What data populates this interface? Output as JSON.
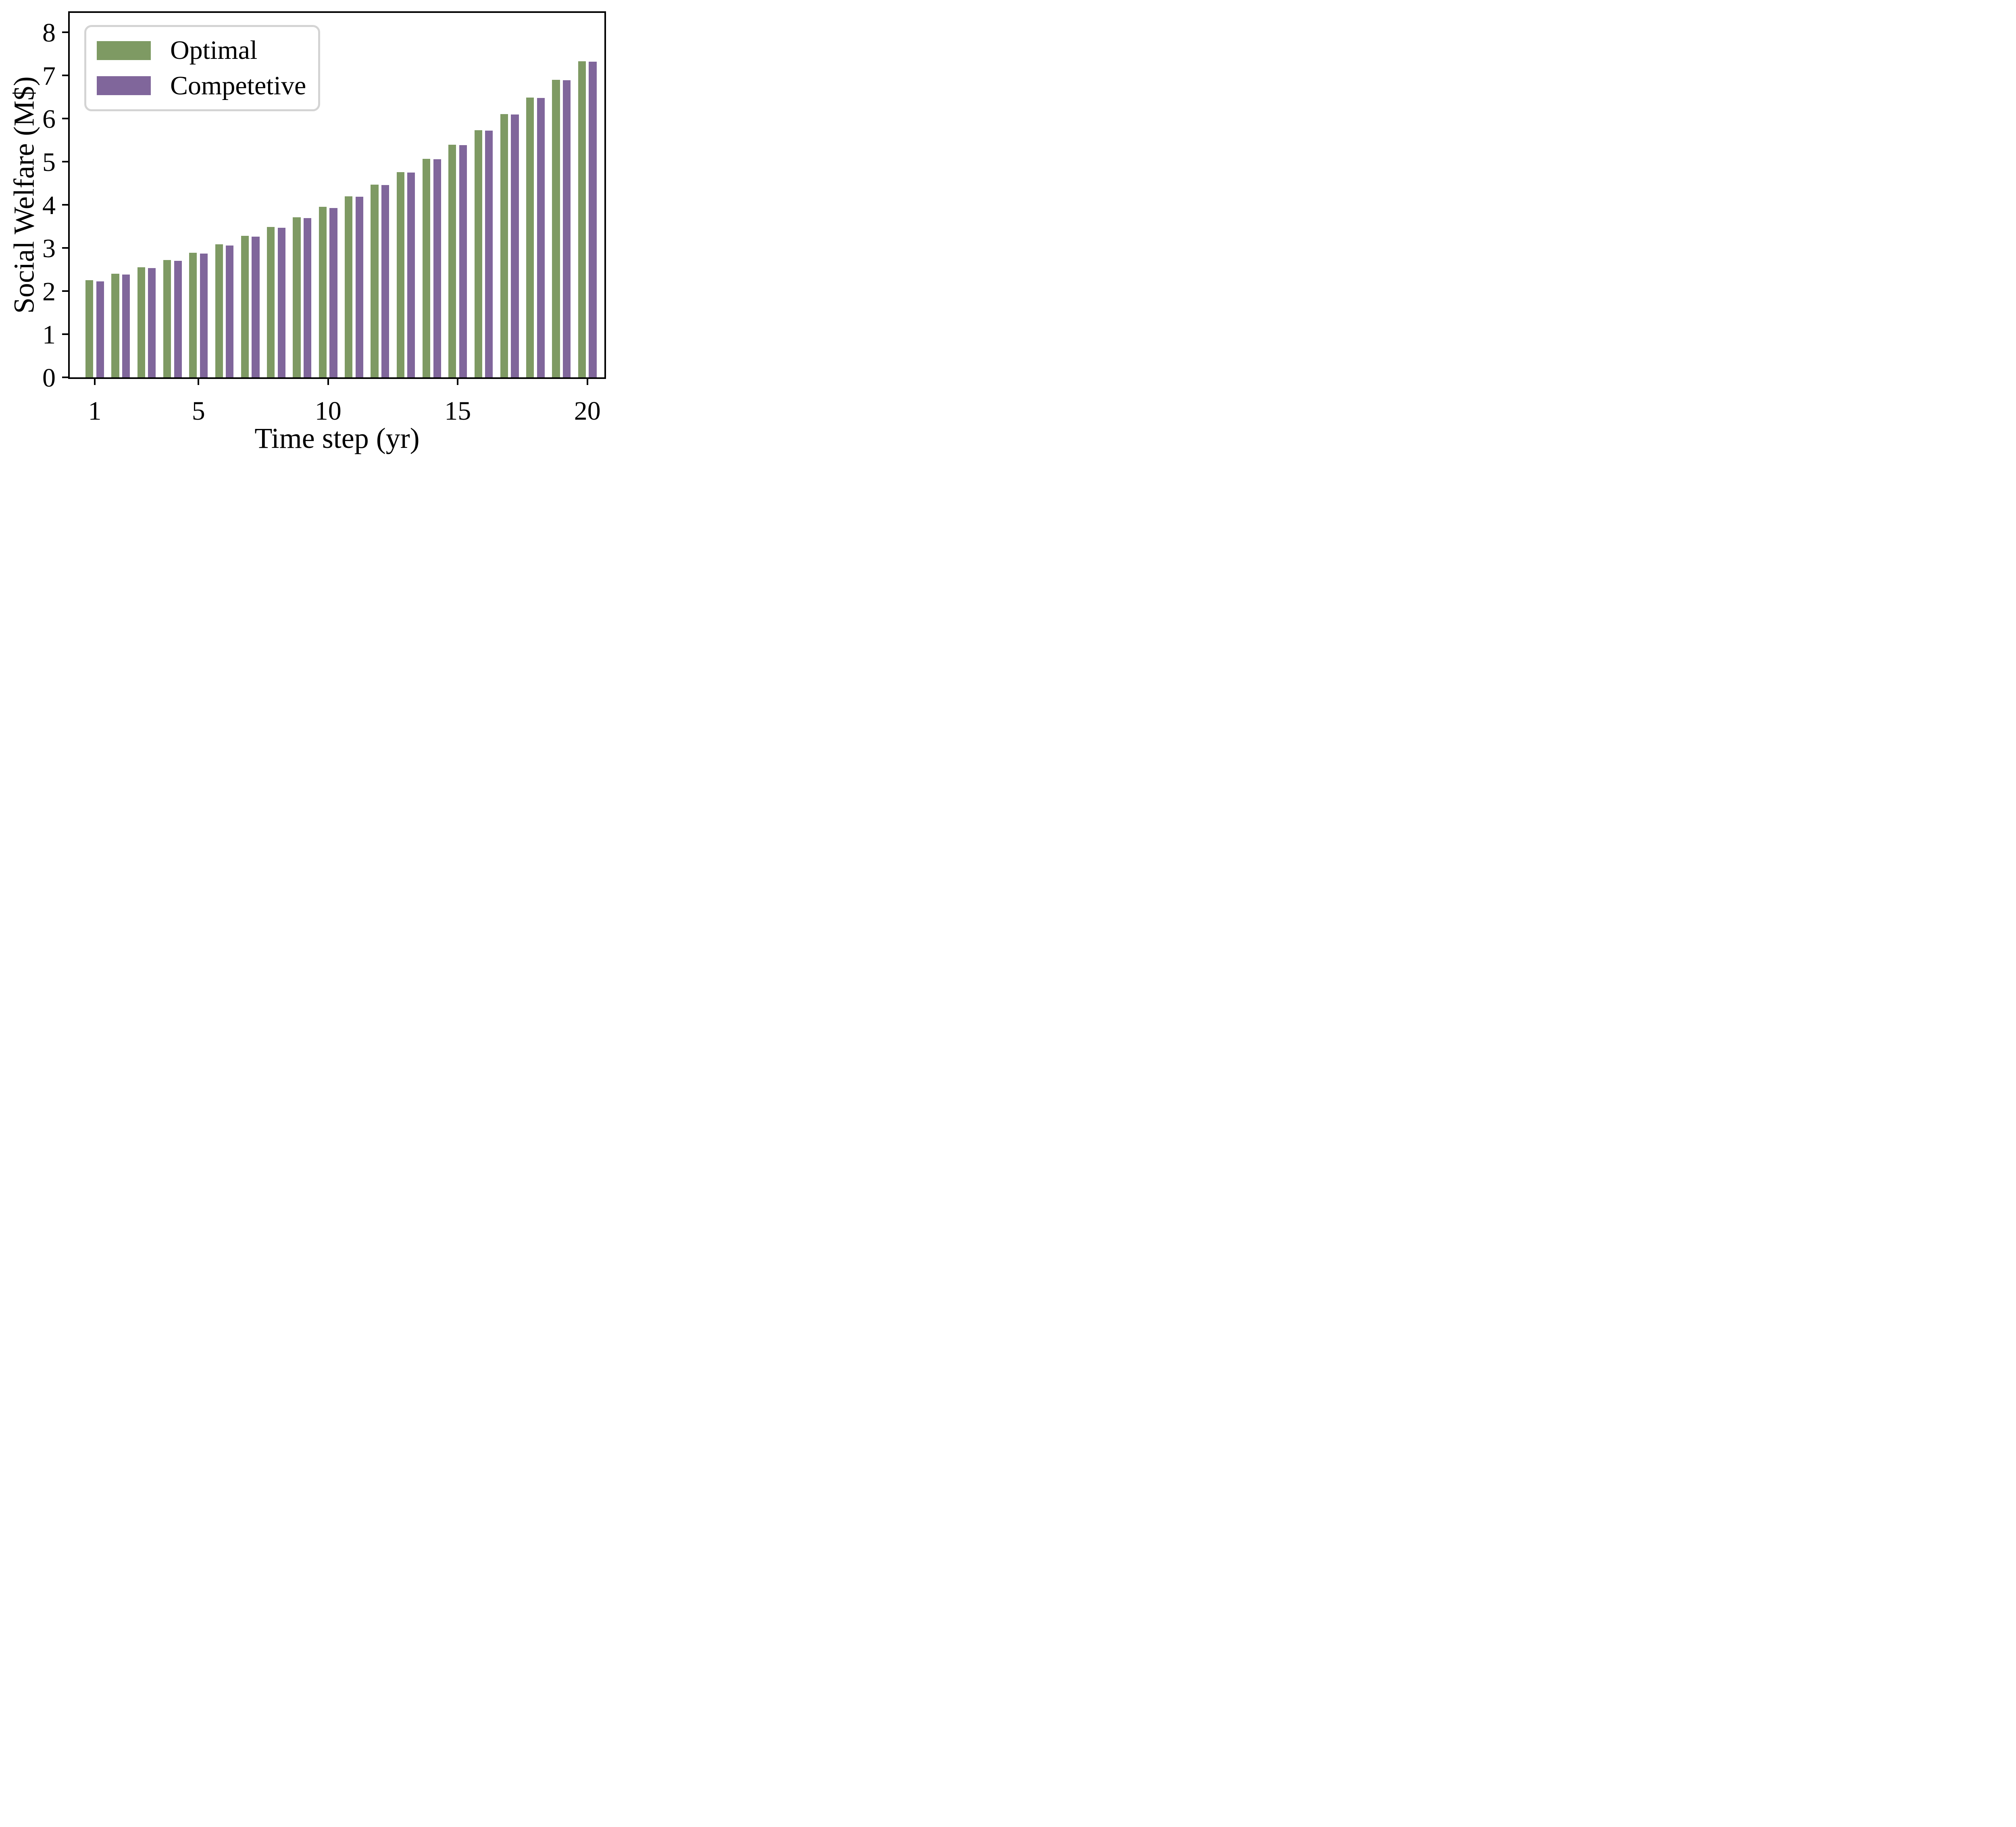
{
  "chart_data": {
    "type": "bar",
    "title": "",
    "xlabel": "Time step (yr)",
    "ylabel": "Social Welfare (M$)",
    "categories": [
      1,
      2,
      3,
      4,
      5,
      6,
      7,
      8,
      9,
      10,
      11,
      12,
      13,
      14,
      15,
      16,
      17,
      18,
      19,
      20
    ],
    "series": [
      {
        "name": "Optimal",
        "color": "#7e9a63",
        "values": [
          2.25,
          2.4,
          2.55,
          2.72,
          2.89,
          3.08,
          3.28,
          3.49,
          3.71,
          3.95,
          4.2,
          4.47,
          4.76,
          5.07,
          5.39,
          5.73,
          6.1,
          6.49,
          6.9,
          7.33
        ]
      },
      {
        "name": "Competetive",
        "color": "#80669b",
        "values": [
          2.22,
          2.38,
          2.53,
          2.7,
          2.87,
          3.06,
          3.26,
          3.47,
          3.69,
          3.93,
          4.19,
          4.46,
          4.75,
          5.06,
          5.38,
          5.72,
          6.09,
          6.48,
          6.89,
          7.32
        ]
      }
    ],
    "ylim": [
      0,
      8.45
    ],
    "yticks": [
      0,
      1,
      2,
      3,
      4,
      5,
      6,
      7,
      8
    ],
    "xticks": [
      1,
      5,
      10,
      15,
      20
    ],
    "legend_position": "upper left",
    "grid": false,
    "spine_color": "#000000",
    "background_color": "#ffffff",
    "legend_border_color": "#d4d4d4"
  }
}
